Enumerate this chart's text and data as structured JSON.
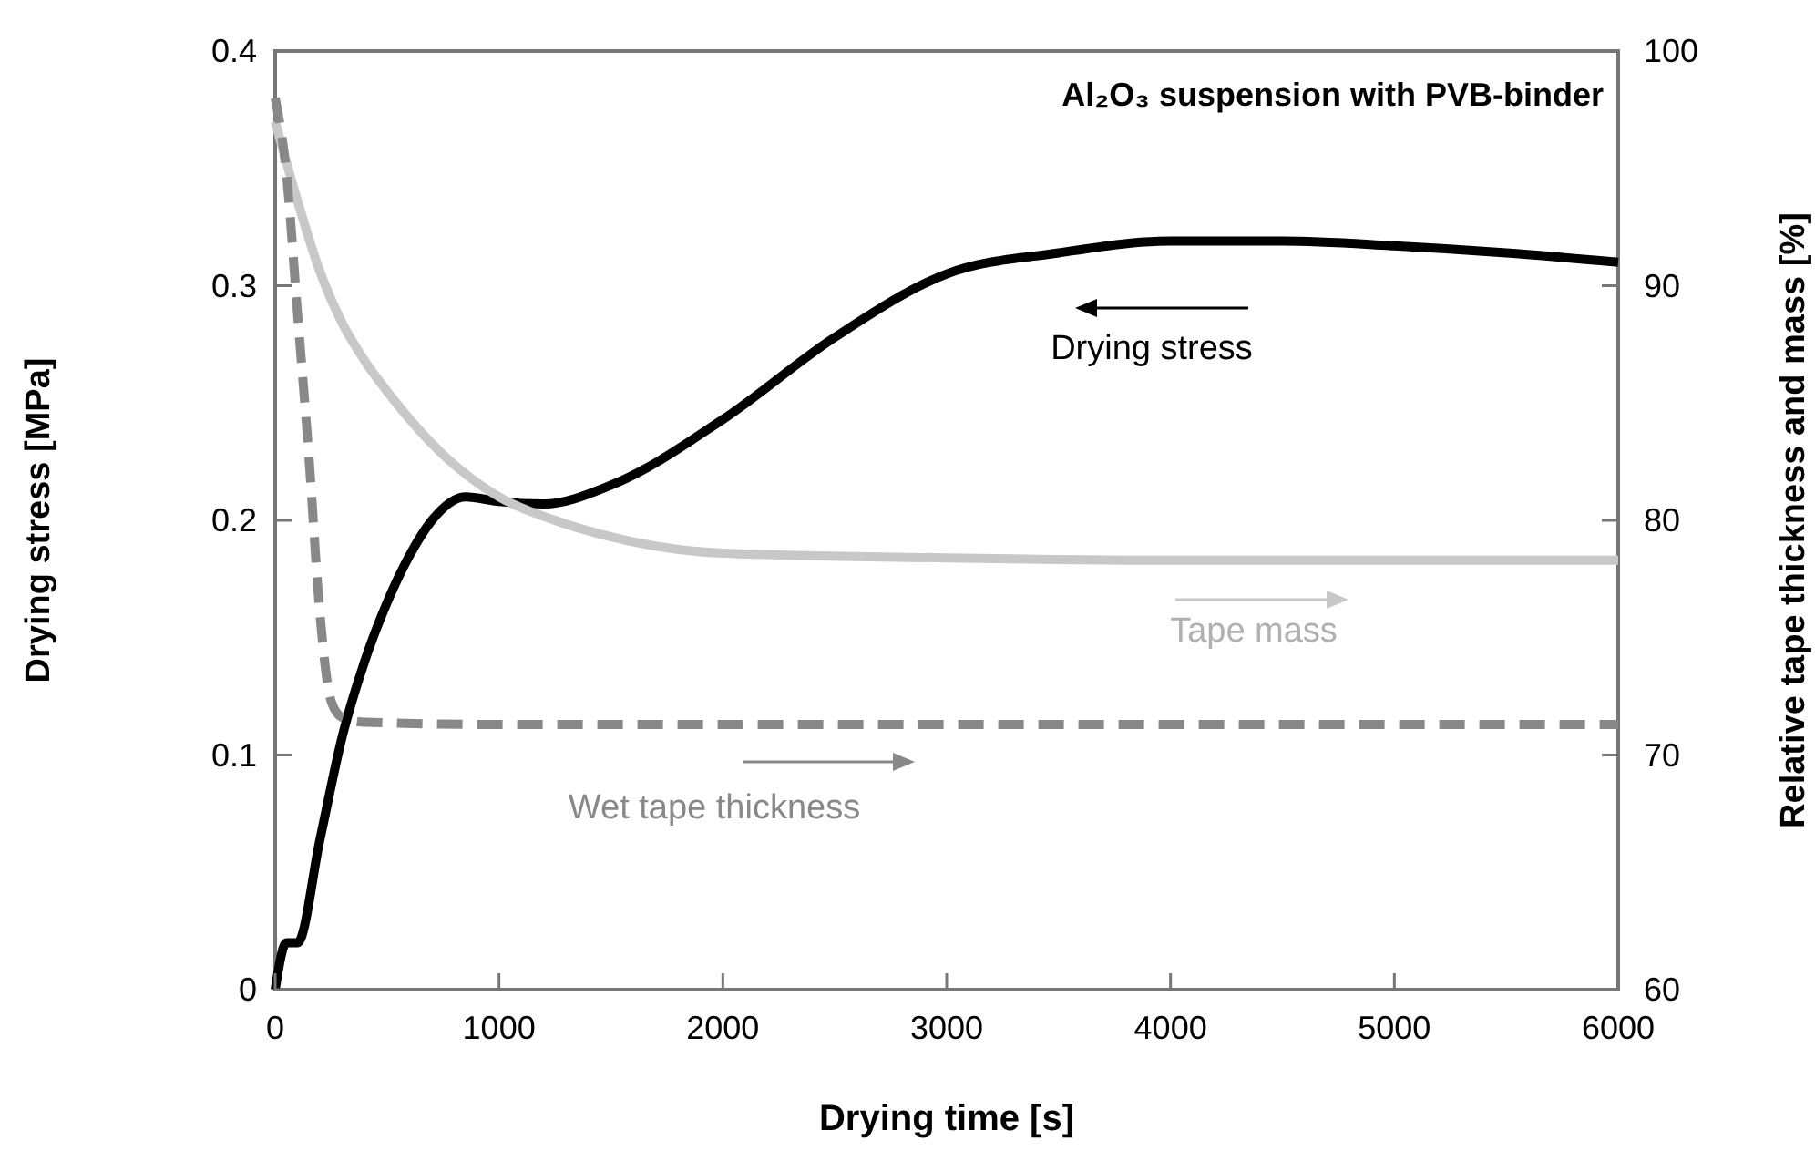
{
  "chart_data": {
    "type": "line",
    "title": "Al₂O₃ suspension with PVB-binder",
    "xlabel": "Drying time [s]",
    "ylabel": "Drying stress [MPa]",
    "y2label": "Relative tape thickness and mass [%]",
    "xlim": [
      0,
      6000
    ],
    "xticks": [
      0,
      1000,
      2000,
      3000,
      4000,
      5000,
      6000
    ],
    "ylim": [
      0,
      0.4
    ],
    "yticks": [
      0,
      0.1,
      0.2,
      0.3,
      0.4
    ],
    "y2lim": [
      60,
      100
    ],
    "y2ticks": [
      60,
      70,
      80,
      90,
      100
    ],
    "grid": false,
    "legend": "center",
    "marker": "none",
    "series": [
      {
        "name": "Drying stress",
        "color": "#000000",
        "line_style": "solid",
        "x": [
          0,
          50,
          100,
          200,
          300,
          400,
          500,
          600,
          700,
          850,
          1000,
          1200,
          1500,
          2000,
          2500,
          3000,
          3500,
          4000,
          4500,
          5000,
          5500,
          6000
        ],
        "values": [
          0,
          0.02,
          0.02,
          0.064,
          0.108,
          0.14,
          0.165,
          0.185,
          0.2,
          0.21,
          0.208,
          0.207,
          0.215,
          0.243,
          0.278,
          0.305,
          0.314,
          0.319,
          0.319,
          0.317,
          0.314,
          0.31
        ]
      },
      {
        "name": "Tape mass",
        "color": "#c8c8c8",
        "axis": "y2",
        "line_style": "solid",
        "x": [
          0,
          100,
          200,
          300,
          400,
          500,
          750,
          1000,
          1250,
          1500,
          2000,
          3000,
          4000,
          5000,
          6000
        ],
        "values": [
          97,
          93.6,
          90.6,
          88.4,
          86.8,
          85.5,
          82.8,
          81,
          80,
          79.3,
          78.6,
          78.4,
          78.3,
          78.3,
          78.3
        ]
      },
      {
        "name": "Wet tape thickness",
        "color": "#888888",
        "axis": "y2",
        "line_style": "dashed",
        "x": [
          0,
          50,
          100,
          150,
          200,
          250,
          300,
          400,
          1000,
          2000,
          3000,
          4000,
          5000,
          6000
        ],
        "values": [
          98,
          94.8,
          88.8,
          82.8,
          76,
          72.3,
          71.6,
          71.4,
          71.3,
          71.3,
          71.3,
          71.3,
          71.3,
          71.3
        ]
      }
    ]
  }
}
